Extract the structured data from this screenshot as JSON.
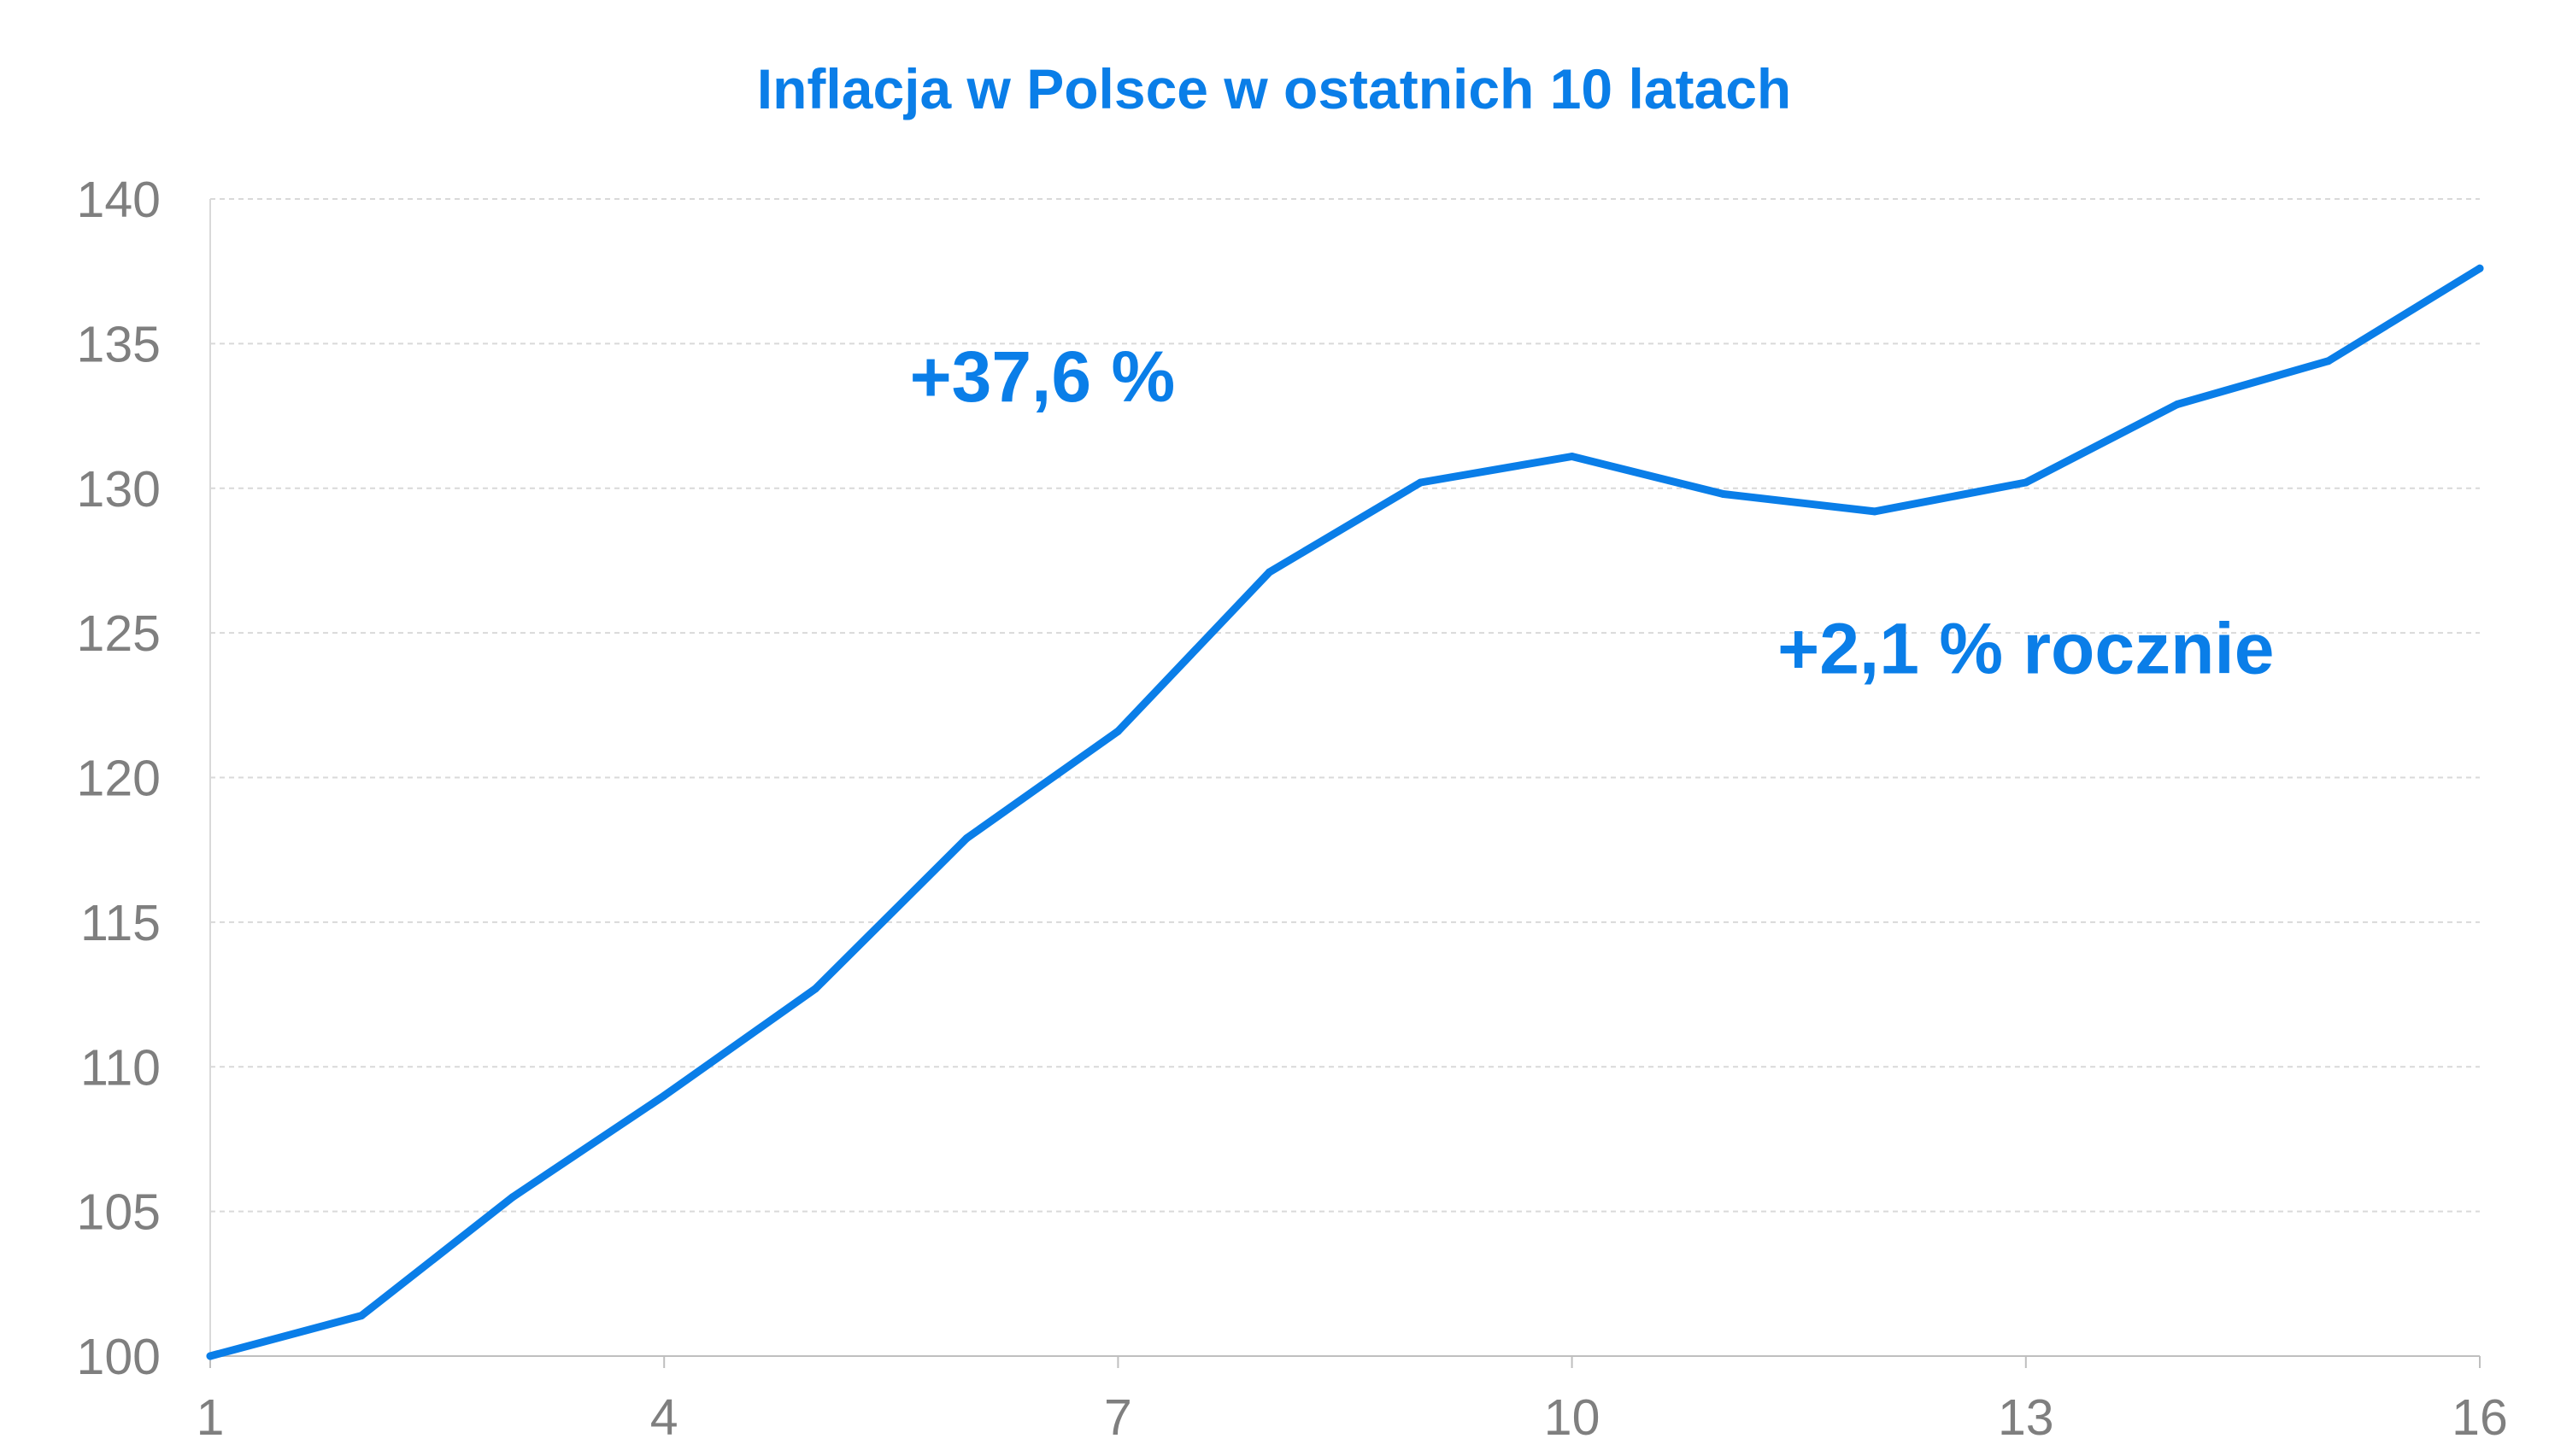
{
  "chart_data": {
    "type": "line",
    "title": "Inflacja w Polsce w ostatnich 10 latach",
    "xlabel": "",
    "ylabel": "",
    "x_ticks": [
      "1",
      "4",
      "7",
      "10",
      "13",
      "16"
    ],
    "y_ticks": [
      "100",
      "105",
      "110",
      "115",
      "120",
      "125",
      "130",
      "135",
      "140"
    ],
    "xlim": [
      1,
      16
    ],
    "ylim": [
      100,
      140
    ],
    "grid": true,
    "legend": "none",
    "series": [
      {
        "x": [
          1,
          2,
          3,
          4,
          5,
          6,
          7,
          8,
          9,
          10,
          11,
          12,
          13,
          14,
          15,
          16
        ],
        "values": [
          100.0,
          101.4,
          105.5,
          109.0,
          112.7,
          117.9,
          121.6,
          127.1,
          130.2,
          131.1,
          129.8,
          129.2,
          130.2,
          132.9,
          134.4,
          137.6
        ]
      }
    ],
    "annotations": [
      {
        "text": "+37,6 %",
        "x": 6.5,
        "y": 133.0
      },
      {
        "text": "+2,1 % rocznie",
        "x": 13.0,
        "y": 123.6
      }
    ]
  },
  "colors": {
    "accent": "#0a7ee8",
    "axis_text": "#7f7f7f",
    "grid": "#d9d9d9"
  }
}
